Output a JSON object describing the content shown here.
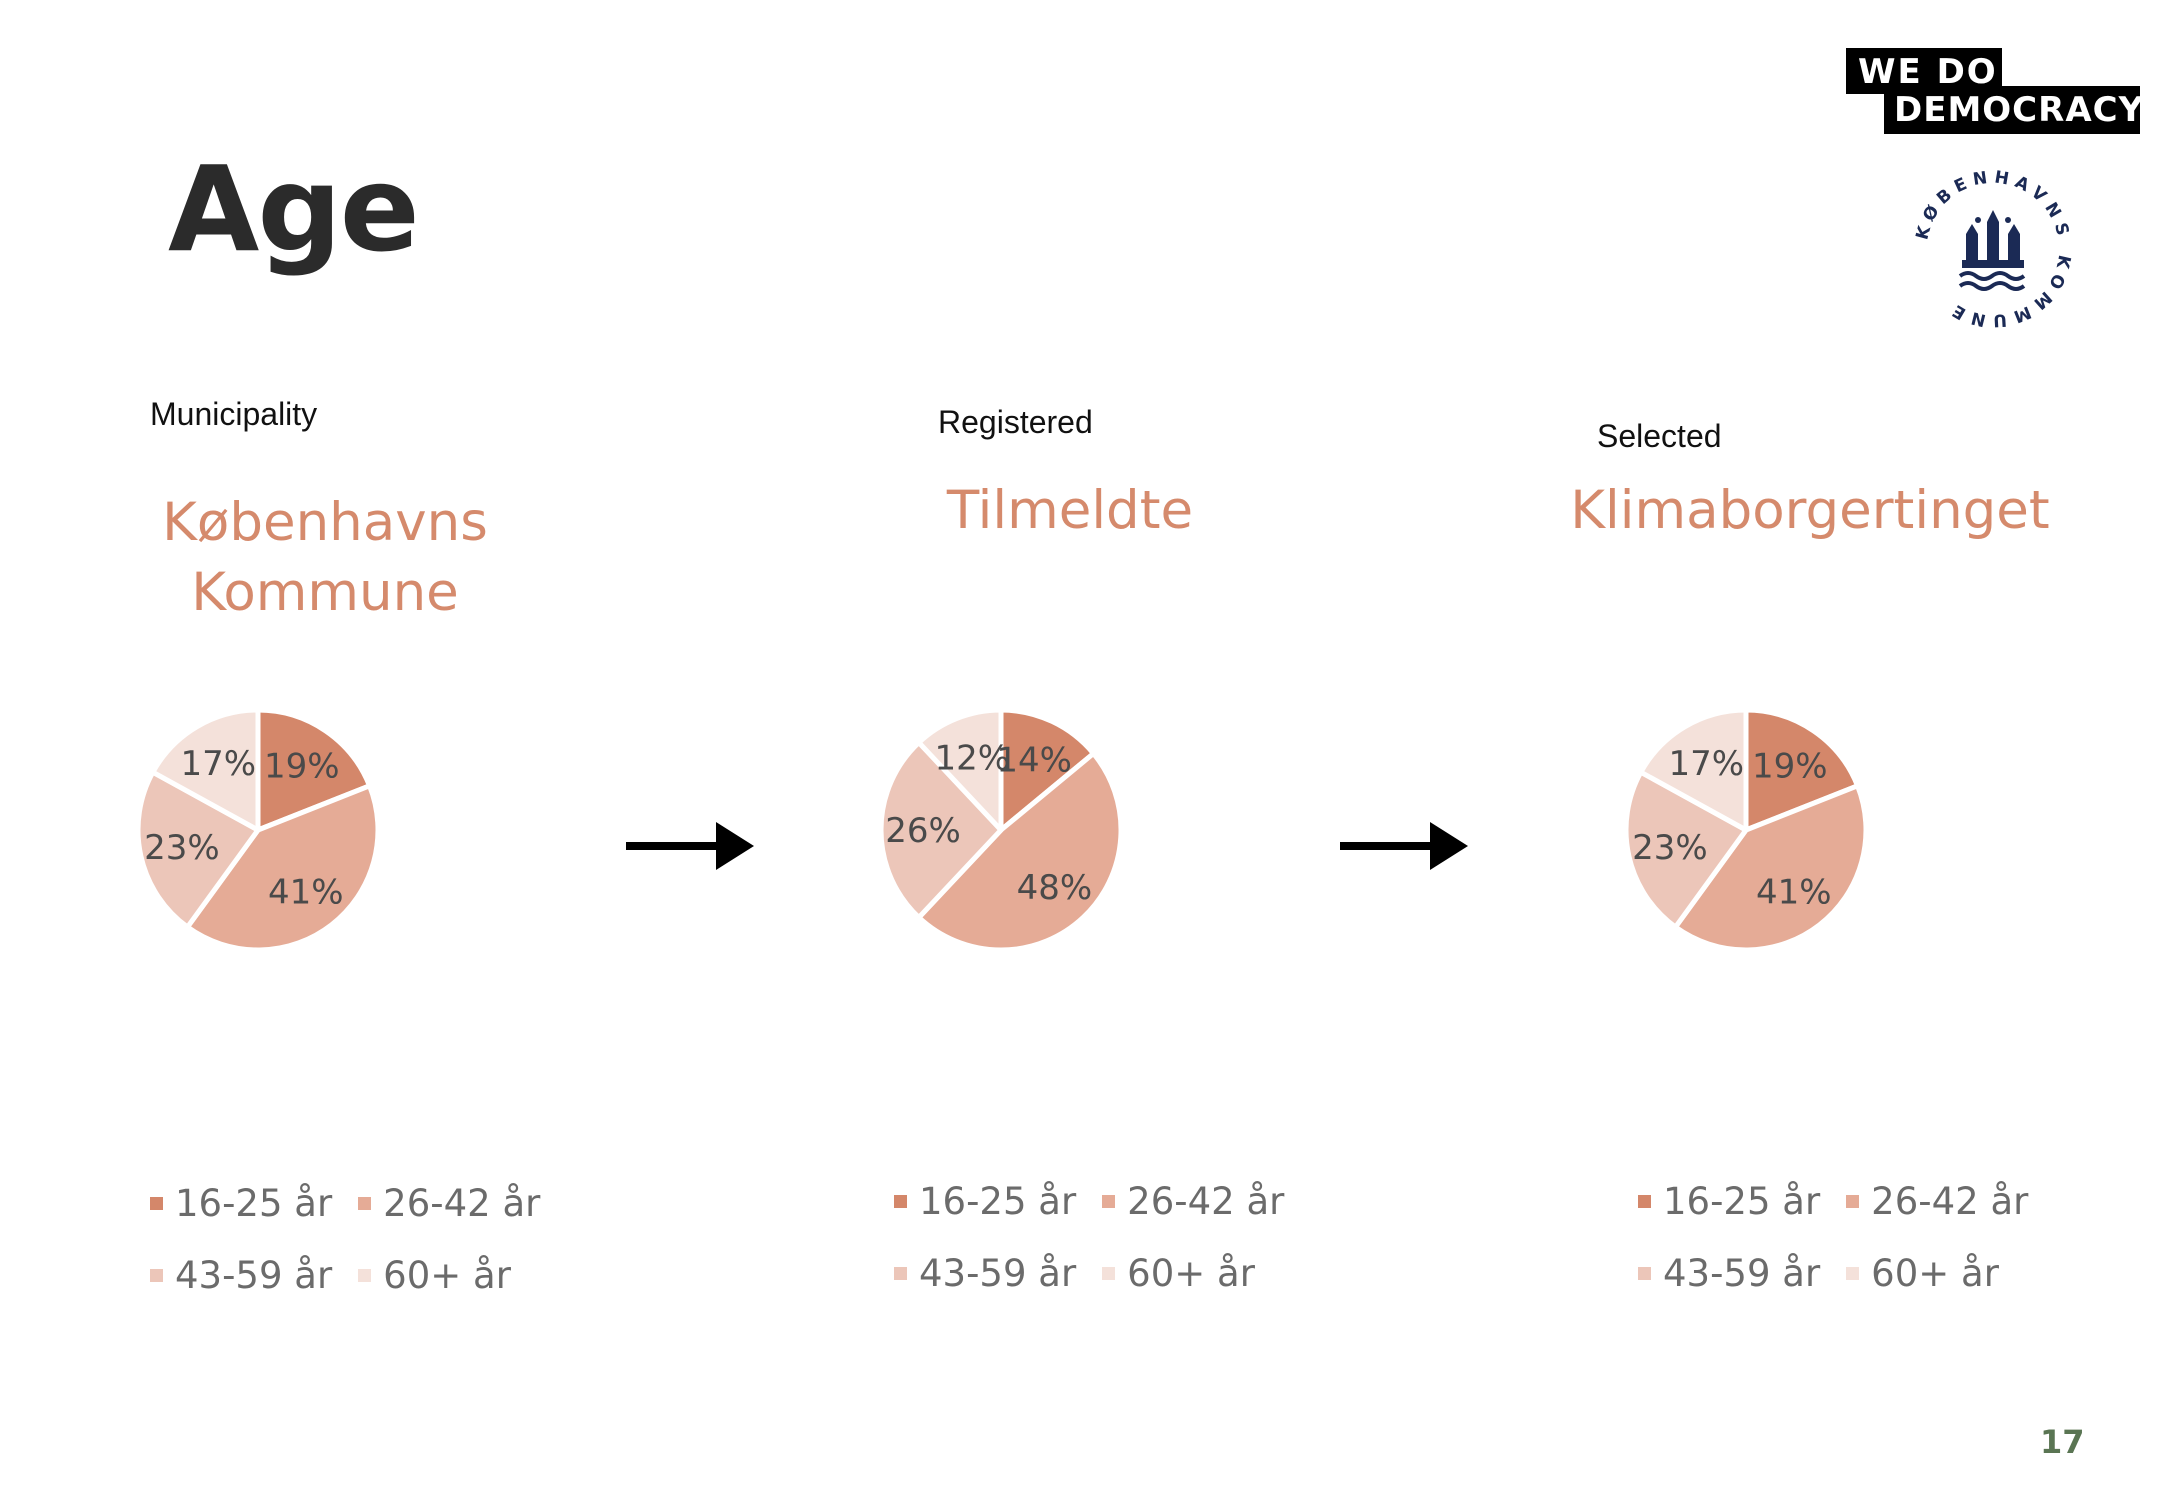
{
  "page": {
    "title": "Age",
    "page_number": "17",
    "logo_text_line1": "WE  DO",
    "logo_text_line2": "DEMOCRACY",
    "seal_text": "KØBENHAVNS KOMMUNE"
  },
  "colors": {
    "age_16_25": "#d4876a",
    "age_26_42": "#e5ab96",
    "age_43_59": "#ecc6b9",
    "age_60_plus": "#f4e1da",
    "title_accent": "#d58a6c",
    "seal_navy": "#1b2a55",
    "page_number": "#5a7553"
  },
  "chart_data": [
    {
      "type": "pie",
      "caption": "Municipality",
      "title": "Københavns Kommune",
      "title_lines": [
        "Københavns",
        "Kommune"
      ],
      "categories": [
        "16-25 år",
        "26-42 år",
        "43-59 år",
        "60+ år"
      ],
      "values": [
        19,
        41,
        23,
        17
      ],
      "labels": [
        "19%",
        "41%",
        "23%",
        "17%"
      ],
      "legend": "bottom"
    },
    {
      "type": "pie",
      "caption": "Registered",
      "title": "Tilmeldte",
      "title_lines": [
        "Tilmeldte"
      ],
      "categories": [
        "16-25 år",
        "26-42 år",
        "43-59 år",
        "60+ år"
      ],
      "values": [
        14,
        48,
        26,
        12
      ],
      "labels": [
        "14%",
        "48%",
        "26%",
        "12%"
      ],
      "legend": "bottom"
    },
    {
      "type": "pie",
      "caption": "Selected",
      "title": "Klimaborgertinget",
      "title_lines": [
        "Klimaborgertinget"
      ],
      "categories": [
        "16-25 år",
        "26-42 år",
        "43-59 år",
        "60+ år"
      ],
      "values": [
        19,
        41,
        23,
        17
      ],
      "labels": [
        "19%",
        "41%",
        "23%",
        "17%"
      ],
      "legend": "bottom"
    }
  ]
}
